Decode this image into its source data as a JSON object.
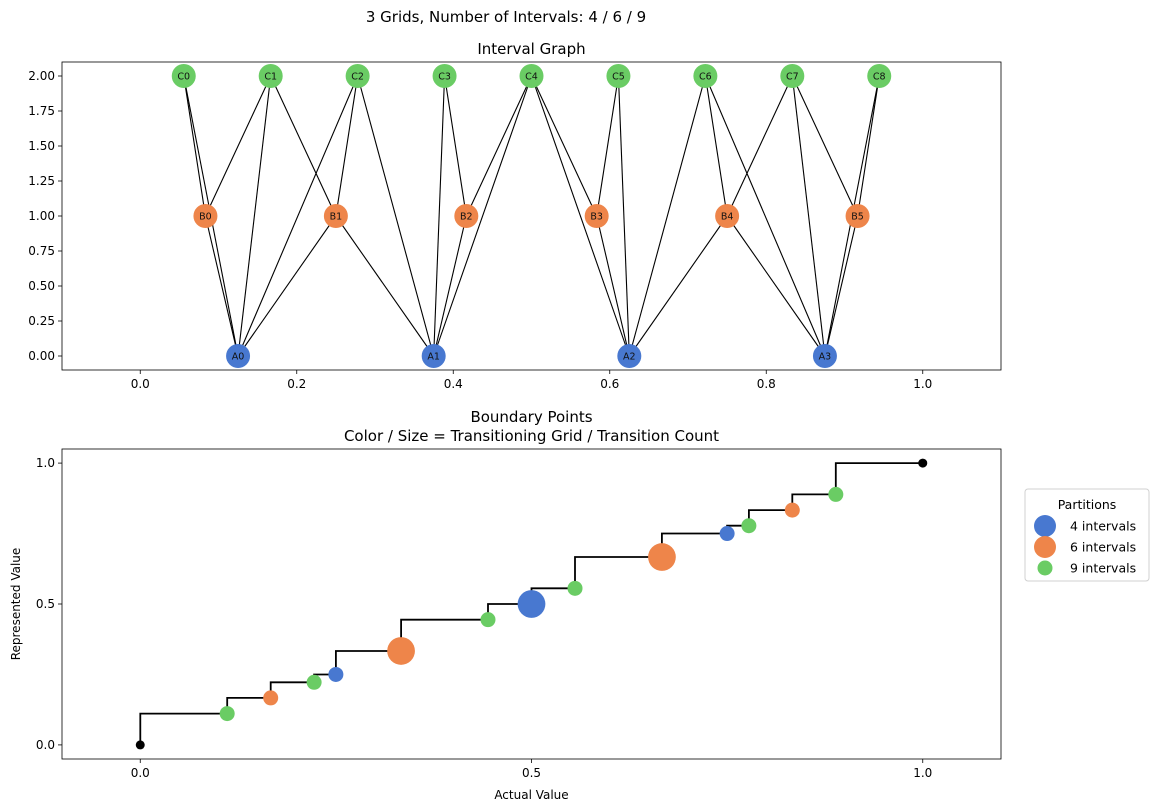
{
  "figure": {
    "suptitle": "3 Grids, Number of Intervals: 4 / 6 / 9"
  },
  "colors": {
    "grid_A": "#4878d0",
    "grid_B": "#ee854a",
    "grid_C": "#6acc64",
    "endpoint": "#000000",
    "edge": "#000000"
  },
  "chart_data": [
    {
      "type": "network",
      "title": "Interval Graph",
      "xlim": [
        -0.1,
        1.1
      ],
      "ylim": [
        -0.1,
        2.1
      ],
      "xticks": [
        0.0,
        0.2,
        0.4,
        0.6,
        0.8,
        1.0
      ],
      "xtick_labels": [
        "0.0",
        "0.2",
        "0.4",
        "0.6",
        "0.8",
        "1.0"
      ],
      "yticks": [
        0.0,
        0.25,
        0.5,
        0.75,
        1.0,
        1.25,
        1.5,
        1.75,
        2.0
      ],
      "ytick_labels": [
        "0.00",
        "0.25",
        "0.50",
        "0.75",
        "1.00",
        "1.25",
        "1.50",
        "1.75",
        "2.00"
      ],
      "nodes": [
        {
          "id": "A0",
          "x": 0.125,
          "y": 0,
          "grid": "A"
        },
        {
          "id": "A1",
          "x": 0.375,
          "y": 0,
          "grid": "A"
        },
        {
          "id": "A2",
          "x": 0.625,
          "y": 0,
          "grid": "A"
        },
        {
          "id": "A3",
          "x": 0.875,
          "y": 0,
          "grid": "A"
        },
        {
          "id": "B0",
          "x": 0.0833,
          "y": 1,
          "grid": "B"
        },
        {
          "id": "B1",
          "x": 0.25,
          "y": 1,
          "grid": "B"
        },
        {
          "id": "B2",
          "x": 0.4167,
          "y": 1,
          "grid": "B"
        },
        {
          "id": "B3",
          "x": 0.5833,
          "y": 1,
          "grid": "B"
        },
        {
          "id": "B4",
          "x": 0.75,
          "y": 1,
          "grid": "B"
        },
        {
          "id": "B5",
          "x": 0.9167,
          "y": 1,
          "grid": "B"
        },
        {
          "id": "C0",
          "x": 0.0556,
          "y": 2,
          "grid": "C"
        },
        {
          "id": "C1",
          "x": 0.1667,
          "y": 2,
          "grid": "C"
        },
        {
          "id": "C2",
          "x": 0.2778,
          "y": 2,
          "grid": "C"
        },
        {
          "id": "C3",
          "x": 0.3889,
          "y": 2,
          "grid": "C"
        },
        {
          "id": "C4",
          "x": 0.5,
          "y": 2,
          "grid": "C"
        },
        {
          "id": "C5",
          "x": 0.6111,
          "y": 2,
          "grid": "C"
        },
        {
          "id": "C6",
          "x": 0.7222,
          "y": 2,
          "grid": "C"
        },
        {
          "id": "C7",
          "x": 0.8333,
          "y": 2,
          "grid": "C"
        },
        {
          "id": "C8",
          "x": 0.9444,
          "y": 2,
          "grid": "C"
        }
      ],
      "edges": [
        [
          "A0",
          "B0"
        ],
        [
          "A0",
          "B1"
        ],
        [
          "A0",
          "C0"
        ],
        [
          "A0",
          "C1"
        ],
        [
          "A0",
          "C2"
        ],
        [
          "A1",
          "B1"
        ],
        [
          "A1",
          "B2"
        ],
        [
          "A1",
          "C2"
        ],
        [
          "A1",
          "C3"
        ],
        [
          "A1",
          "C4"
        ],
        [
          "A2",
          "B3"
        ],
        [
          "A2",
          "B4"
        ],
        [
          "A2",
          "C4"
        ],
        [
          "A2",
          "C5"
        ],
        [
          "A2",
          "C6"
        ],
        [
          "A3",
          "B4"
        ],
        [
          "A3",
          "B5"
        ],
        [
          "A3",
          "C6"
        ],
        [
          "A3",
          "C7"
        ],
        [
          "A3",
          "C8"
        ],
        [
          "B0",
          "C0"
        ],
        [
          "B0",
          "C1"
        ],
        [
          "B1",
          "C1"
        ],
        [
          "B1",
          "C2"
        ],
        [
          "B2",
          "C3"
        ],
        [
          "B2",
          "C4"
        ],
        [
          "B3",
          "C4"
        ],
        [
          "B3",
          "C5"
        ],
        [
          "B4",
          "C6"
        ],
        [
          "B4",
          "C7"
        ],
        [
          "B5",
          "C7"
        ],
        [
          "B5",
          "C8"
        ]
      ]
    },
    {
      "type": "step-scatter",
      "title_lines": [
        "Boundary Points",
        "Color / Size = Transitioning Grid / Transition Count"
      ],
      "xlabel": "Actual Value",
      "ylabel": "Represented Value",
      "xlim": [
        -0.1,
        1.1
      ],
      "ylim": [
        -0.05,
        1.05
      ],
      "xticks": [
        0.0,
        0.5,
        1.0
      ],
      "xtick_labels": [
        "0.0",
        "0.5",
        "1.0"
      ],
      "yticks": [
        0.0,
        0.5,
        1.0
      ],
      "ytick_labels": [
        "0.0",
        "0.5",
        "1.0"
      ],
      "legend": {
        "title": "Partitions",
        "position": "right-outside",
        "entries": [
          {
            "label": "4 intervals",
            "grid": "A"
          },
          {
            "label": "6 intervals",
            "grid": "B"
          },
          {
            "label": "9 intervals",
            "grid": "C"
          }
        ]
      },
      "endpoints": [
        {
          "x": 0.0,
          "y": 0.0
        },
        {
          "x": 1.0,
          "y": 1.0
        }
      ],
      "steps": [
        {
          "x": 0.0,
          "y": 0.0
        },
        {
          "x": 0.0,
          "y": 0.1111
        },
        {
          "x": 0.1111,
          "y": 0.1111
        },
        {
          "x": 0.1111,
          "y": 0.1667
        },
        {
          "x": 0.1667,
          "y": 0.1667
        },
        {
          "x": 0.1667,
          "y": 0.2222
        },
        {
          "x": 0.2222,
          "y": 0.2222
        },
        {
          "x": 0.2222,
          "y": 0.25
        },
        {
          "x": 0.25,
          "y": 0.25
        },
        {
          "x": 0.25,
          "y": 0.3333
        },
        {
          "x": 0.3333,
          "y": 0.3333
        },
        {
          "x": 0.3333,
          "y": 0.4444
        },
        {
          "x": 0.4444,
          "y": 0.4444
        },
        {
          "x": 0.4444,
          "y": 0.5
        },
        {
          "x": 0.5,
          "y": 0.5
        },
        {
          "x": 0.5,
          "y": 0.5556
        },
        {
          "x": 0.5556,
          "y": 0.5556
        },
        {
          "x": 0.5556,
          "y": 0.6667
        },
        {
          "x": 0.6667,
          "y": 0.6667
        },
        {
          "x": 0.6667,
          "y": 0.75
        },
        {
          "x": 0.75,
          "y": 0.75
        },
        {
          "x": 0.75,
          "y": 0.7778
        },
        {
          "x": 0.7778,
          "y": 0.7778
        },
        {
          "x": 0.7778,
          "y": 0.8333
        },
        {
          "x": 0.8333,
          "y": 0.8333
        },
        {
          "x": 0.8333,
          "y": 0.8889
        },
        {
          "x": 0.8889,
          "y": 0.8889
        },
        {
          "x": 0.8889,
          "y": 1.0
        },
        {
          "x": 1.0,
          "y": 1.0
        }
      ],
      "points": [
        {
          "x": 0.1111,
          "y": 0.1111,
          "grid": "C",
          "count": 1
        },
        {
          "x": 0.1667,
          "y": 0.1667,
          "grid": "B",
          "count": 1
        },
        {
          "x": 0.2222,
          "y": 0.2222,
          "grid": "C",
          "count": 1
        },
        {
          "x": 0.25,
          "y": 0.25,
          "grid": "A",
          "count": 1
        },
        {
          "x": 0.3333,
          "y": 0.3333,
          "grid": "B",
          "count": 2
        },
        {
          "x": 0.4444,
          "y": 0.4444,
          "grid": "C",
          "count": 1
        },
        {
          "x": 0.5,
          "y": 0.5,
          "grid": "A",
          "count": 2
        },
        {
          "x": 0.5556,
          "y": 0.5556,
          "grid": "C",
          "count": 1
        },
        {
          "x": 0.6667,
          "y": 0.6667,
          "grid": "B",
          "count": 2
        },
        {
          "x": 0.75,
          "y": 0.75,
          "grid": "A",
          "count": 1
        },
        {
          "x": 0.7778,
          "y": 0.7778,
          "grid": "C",
          "count": 1
        },
        {
          "x": 0.8333,
          "y": 0.8333,
          "grid": "B",
          "count": 1
        },
        {
          "x": 0.8889,
          "y": 0.8889,
          "grid": "C",
          "count": 1
        }
      ]
    }
  ]
}
